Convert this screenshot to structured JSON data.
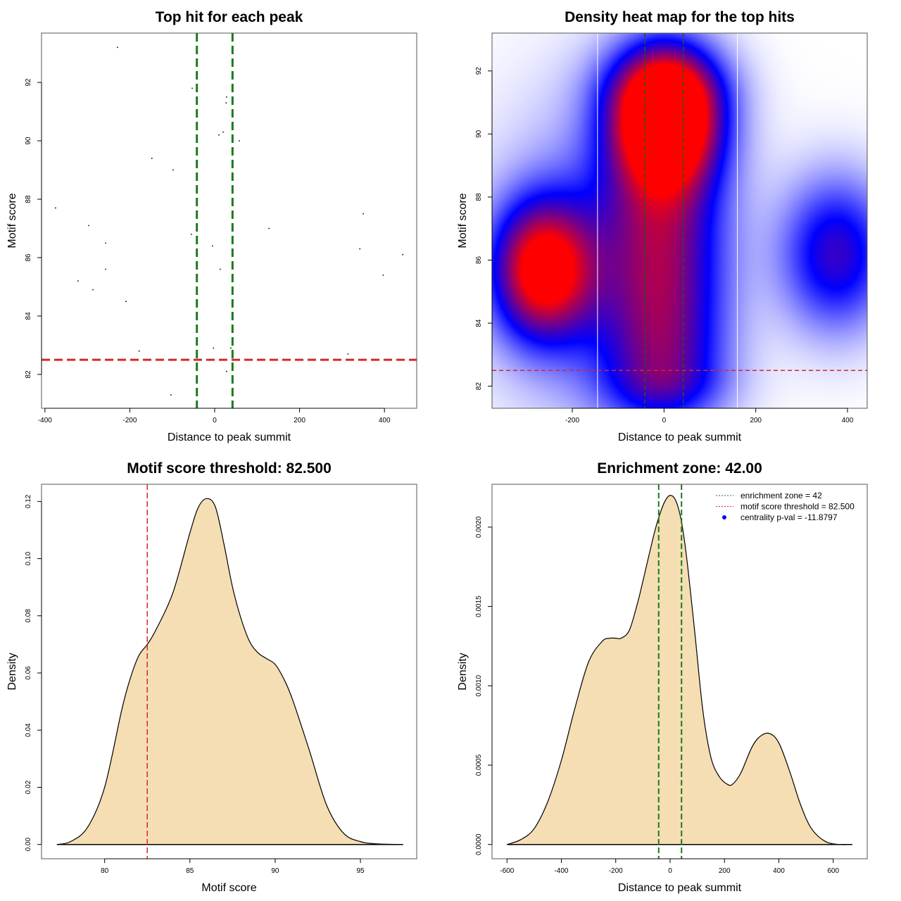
{
  "chart_data": [
    {
      "id": "scatter",
      "type": "scatter",
      "title": "Top hit for each peak",
      "xlabel": "Distance to peak summit",
      "ylabel": "Motif score",
      "xlim": [
        -408,
        476
      ],
      "ylim": [
        80.84,
        93.69
      ],
      "xticks": [
        -400,
        -200,
        0,
        200,
        400
      ],
      "xtick_labels": [
        "-400",
        "-200",
        "0",
        "200",
        "400"
      ],
      "yticks": [
        82,
        84,
        86,
        88,
        90,
        92
      ],
      "ytick_labels": [
        "82",
        "84",
        "86",
        "88",
        "90",
        "92"
      ],
      "points": [
        {
          "x": -229,
          "y": 93.2
        },
        {
          "x": -53,
          "y": 91.8
        },
        {
          "x": 28,
          "y": 91.5
        },
        {
          "x": 27,
          "y": 91.3
        },
        {
          "x": 20,
          "y": 90.3
        },
        {
          "x": 10,
          "y": 90.2
        },
        {
          "x": 58,
          "y": 90.0
        },
        {
          "x": -148,
          "y": 89.4
        },
        {
          "x": -98,
          "y": 89.0
        },
        {
          "x": -375,
          "y": 87.7
        },
        {
          "x": 350,
          "y": 87.5
        },
        {
          "x": -297,
          "y": 87.1
        },
        {
          "x": 128,
          "y": 87.0
        },
        {
          "x": -55,
          "y": 86.8
        },
        {
          "x": -257,
          "y": 86.5
        },
        {
          "x": -5,
          "y": 86.4
        },
        {
          "x": 342,
          "y": 86.3
        },
        {
          "x": 443,
          "y": 86.1
        },
        {
          "x": -257,
          "y": 85.6
        },
        {
          "x": 13,
          "y": 85.6
        },
        {
          "x": 397,
          "y": 85.4
        },
        {
          "x": -322,
          "y": 85.2
        },
        {
          "x": -287,
          "y": 84.9
        },
        {
          "x": -209,
          "y": 84.5
        },
        {
          "x": -3,
          "y": 82.9
        },
        {
          "x": 38,
          "y": 82.9
        },
        {
          "x": -178,
          "y": 82.8
        },
        {
          "x": 314,
          "y": 82.7
        },
        {
          "x": 28,
          "y": 82.1
        },
        {
          "x": -103,
          "y": 81.3
        }
      ],
      "vlines": [
        -42,
        42
      ],
      "vline_color": "#1a7a1a",
      "hline": 82.5,
      "hline_color": "#d62728"
    },
    {
      "id": "heatmap",
      "type": "heatmap",
      "title": "Density heat map for the top hits",
      "xlabel": "Distance to peak summit",
      "ylabel": "Motif score",
      "xlim": [
        -375,
        443
      ],
      "ylim": [
        81.3,
        93.2
      ],
      "xticks": [
        -200,
        0,
        200,
        400
      ],
      "xtick_labels": [
        "-200",
        "0",
        "200",
        "400"
      ],
      "yticks": [
        82,
        84,
        86,
        88,
        90,
        92
      ],
      "ytick_labels": [
        "82",
        "84",
        "86",
        "88",
        "90",
        "92"
      ],
      "colors": {
        "low": "#ffffff",
        "mid": "#0000ff",
        "high": "#ff0000"
      },
      "density_peaks": [
        {
          "x": 5,
          "y": 90.6,
          "strength": 1.0
        },
        {
          "x": -265,
          "y": 85.7,
          "strength": 0.95
        },
        {
          "x": 0,
          "y": 85.0,
          "strength": 0.62
        },
        {
          "x": 375,
          "y": 86.2,
          "strength": 0.55
        }
      ],
      "white_vlines": [
        -145,
        160
      ],
      "vlines": [
        -42,
        42
      ],
      "vline_color": "#1a5a1a",
      "hline": 82.5,
      "hline_color": "#d62728"
    },
    {
      "id": "score_density",
      "type": "area",
      "title": "Motif score threshold: 82.500",
      "xlabel": "Motif score",
      "ylabel": "Density",
      "xlim": [
        76.3,
        98.3
      ],
      "ylim": [
        -0.005,
        0.126
      ],
      "xticks": [
        80,
        85,
        90,
        95
      ],
      "xtick_labels": [
        "80",
        "85",
        "90",
        "95"
      ],
      "yticks": [
        0.0,
        0.02,
        0.04,
        0.06,
        0.08,
        0.1,
        0.12
      ],
      "ytick_labels": [
        "0.00",
        "0.02",
        "0.04",
        "0.06",
        "0.08",
        "0.10",
        "0.12"
      ],
      "x": [
        77.2,
        78.0,
        79.0,
        80.0,
        81.0,
        81.5,
        82.0,
        82.5,
        83.0,
        84.0,
        85.0,
        85.5,
        86.0,
        86.5,
        87.0,
        87.5,
        88.0,
        88.5,
        89.0,
        89.5,
        90.0,
        90.5,
        91.0,
        92.0,
        93.0,
        94.0,
        95.0,
        96.0,
        97.5
      ],
      "y": [
        0.0,
        0.001,
        0.006,
        0.02,
        0.047,
        0.058,
        0.066,
        0.07,
        0.075,
        0.088,
        0.109,
        0.118,
        0.121,
        0.118,
        0.105,
        0.09,
        0.079,
        0.071,
        0.067,
        0.065,
        0.063,
        0.058,
        0.051,
        0.033,
        0.014,
        0.004,
        0.001,
        0.0002,
        0.0
      ],
      "fill": "#f5deb3",
      "vline": 82.5,
      "vline_color": "#d62728"
    },
    {
      "id": "distance_density",
      "type": "area",
      "title": "Enrichment zone: 42.00",
      "xlabel": "Distance to peak summit",
      "ylabel": "Density",
      "xlim": [
        -655,
        725
      ],
      "ylim": [
        -9e-05,
        0.00227
      ],
      "xticks": [
        -600,
        -400,
        -200,
        0,
        200,
        400,
        600
      ],
      "xtick_labels": [
        "-600",
        "-400",
        "-200",
        "0",
        "200",
        "400",
        "600"
      ],
      "yticks": [
        0.0,
        0.0005,
        0.001,
        0.0015,
        0.002
      ],
      "ytick_labels": [
        "0.0000",
        "0.0005",
        "0.0010",
        "0.0015",
        "0.0020"
      ],
      "x": [
        -600,
        -550,
        -500,
        -450,
        -400,
        -350,
        -300,
        -250,
        -220,
        -200,
        -180,
        -150,
        -120,
        -100,
        -60,
        -40,
        -20,
        0,
        20,
        40,
        60,
        90,
        120,
        150,
        180,
        210,
        230,
        260,
        300,
        330,
        365,
        400,
        440,
        480,
        520,
        570,
        620,
        670
      ],
      "y": [
        0.0,
        3e-05,
        0.0001,
        0.00027,
        0.00053,
        0.00086,
        0.00115,
        0.00128,
        0.0013,
        0.0013,
        0.0013,
        0.00135,
        0.00152,
        0.00166,
        0.00195,
        0.00207,
        0.00216,
        0.0022,
        0.00217,
        0.00205,
        0.00182,
        0.00135,
        0.00085,
        0.00055,
        0.00043,
        0.00038,
        0.00038,
        0.00045,
        0.00061,
        0.00068,
        0.0007,
        0.00064,
        0.00046,
        0.00025,
        0.0001,
        2e-05,
        0.0,
        0.0
      ],
      "fill": "#f5deb3",
      "vlines": [
        -42,
        42
      ],
      "vline_color": "#1a7a1a",
      "legend": {
        "position": "top-right",
        "entries": [
          {
            "label": "enrichment zone = 42",
            "color": "#1a7a1a",
            "style": "dotted-line"
          },
          {
            "label": "motif score threshold = 82.500",
            "color": "#d62728",
            "style": "dotted-line"
          },
          {
            "label": "centrality p-val = -11.8797",
            "color": "#0000ff",
            "style": "point"
          }
        ]
      }
    }
  ]
}
